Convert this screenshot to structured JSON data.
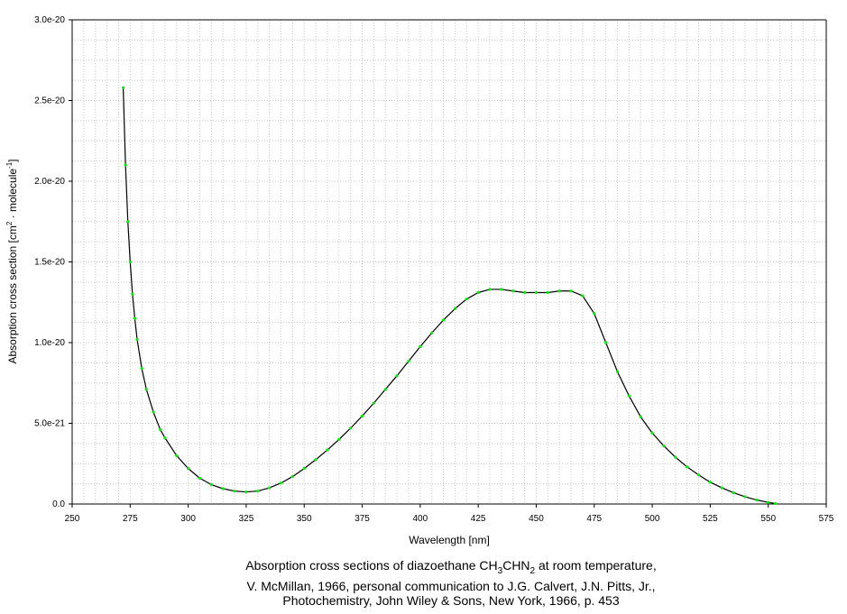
{
  "chart_data": {
    "type": "line",
    "xlabel": "Wavelength [nm]",
    "ylabel_main": "Absorption cross section [cm",
    "ylabel_sup1": "2",
    "ylabel_mid": " · molecule",
    "ylabel_sup2": "-1",
    "ylabel_end": "]",
    "xlim": [
      250,
      575
    ],
    "ylim": [
      0,
      3e-20
    ],
    "x_ticks": [
      250,
      275,
      300,
      325,
      350,
      375,
      400,
      425,
      450,
      475,
      500,
      525,
      550,
      575
    ],
    "y_ticks": [
      0,
      5e-21,
      1e-20,
      1.5e-20,
      2e-20,
      2.5e-20,
      3e-20
    ],
    "y_tick_labels": [
      "0.0",
      "5.0e-21",
      "1.0e-20",
      "1.5e-20",
      "2.0e-20",
      "2.5e-20",
      "3.0e-20"
    ],
    "grid": true,
    "colors": {
      "line": "#000000",
      "markers": "#00ee00"
    },
    "series": [
      {
        "x": [
          272,
          273,
          274,
          275,
          276,
          277,
          278,
          280,
          282,
          285,
          288,
          290,
          295,
          300,
          305,
          310,
          315,
          320,
          325,
          330,
          335,
          340,
          345,
          350,
          355,
          360,
          365,
          370,
          375,
          380,
          385,
          390,
          395,
          400,
          405,
          410,
          415,
          420,
          425,
          430,
          435,
          440,
          445,
          450,
          455,
          460,
          465,
          470,
          475,
          480,
          485,
          490,
          495,
          500,
          505,
          510,
          515,
          520,
          525,
          530,
          535,
          540,
          545,
          550,
          553
        ],
        "y": [
          2.58e-20,
          2.1e-20,
          1.75e-20,
          1.5e-20,
          1.3e-20,
          1.15e-20,
          1.02e-20,
          8.4e-21,
          7.1e-21,
          5.7e-21,
          4.6e-21,
          4.1e-21,
          3e-21,
          2.2e-21,
          1.6e-21,
          1.2e-21,
          9.5e-22,
          8e-22,
          7.5e-22,
          8e-22,
          1e-21,
          1.3e-21,
          1.7e-21,
          2.2e-21,
          2.75e-21,
          3.35e-21,
          4e-21,
          4.7e-21,
          5.45e-21,
          6.25e-21,
          7.1e-21,
          7.95e-21,
          8.85e-21,
          9.75e-21,
          1.06e-20,
          1.14e-20,
          1.21e-20,
          1.27e-20,
          1.31e-20,
          1.33e-20,
          1.33e-20,
          1.32e-20,
          1.31e-20,
          1.31e-20,
          1.31e-20,
          1.32e-20,
          1.32e-20,
          1.29e-20,
          1.18e-20,
          1e-20,
          8.2e-21,
          6.7e-21,
          5.4e-21,
          4.4e-21,
          3.6e-21,
          2.9e-21,
          2.3e-21,
          1.8e-21,
          1.35e-21,
          1e-21,
          7e-22,
          4.5e-22,
          2.5e-22,
          1e-22,
          3e-23
        ]
      }
    ]
  },
  "caption": {
    "line1_pre": "Absorption cross sections of diazoethane CH",
    "line1_sub1": "3",
    "line1_mid": "CHN",
    "line1_sub2": "2",
    "line1_post": " at room temperature,",
    "line2": "V. McMillan, 1966, personal communication to J.G. Calvert, J.N. Pitts, Jr.,",
    "line3": "Photochemistry, John Wiley & Sons, New York, 1966, p. 453"
  }
}
